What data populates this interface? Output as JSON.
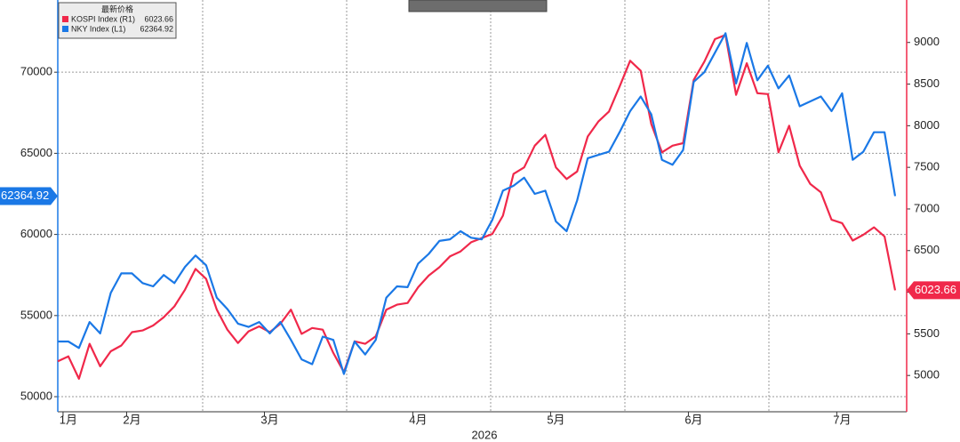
{
  "chart_data": {
    "type": "line",
    "xlabel": "2026",
    "legend_title": "最新价格",
    "categories": [
      null,
      "1月",
      null,
      null,
      null,
      null,
      null,
      "2月",
      null,
      null,
      null,
      null,
      null,
      null,
      null,
      null,
      null,
      null,
      null,
      null,
      "3月",
      null,
      null,
      null,
      null,
      null,
      null,
      null,
      null,
      null,
      null,
      null,
      null,
      null,
      "4月",
      null,
      null,
      null,
      null,
      null,
      null,
      null,
      null,
      null,
      null,
      null,
      null,
      "5月",
      null,
      null,
      null,
      null,
      null,
      null,
      null,
      null,
      null,
      null,
      null,
      null,
      "6月",
      null,
      null,
      null,
      null,
      null,
      null,
      null,
      null,
      null,
      null,
      null,
      null,
      null,
      "7月",
      null,
      null,
      null,
      null,
      null
    ],
    "series": [
      {
        "name": "KOSPI Index (R1)",
        "color": "#f0284a",
        "axis": "y2",
        "values": [
          5170,
          5230,
          4960,
          5380,
          5110,
          5290,
          5360,
          5520,
          5540,
          5600,
          5700,
          5830,
          6030,
          6280,
          6160,
          5790,
          5550,
          5390,
          5530,
          5590,
          5520,
          5620,
          5790,
          5500,
          5570,
          5550,
          5270,
          5040,
          5410,
          5380,
          5470,
          5790,
          5850,
          5870,
          6060,
          6200,
          6300,
          6430,
          6490,
          6600,
          6650,
          6700,
          6920,
          7420,
          7500,
          7760,
          7890,
          7500,
          7360,
          7450,
          7870,
          8050,
          8170,
          8470,
          8780,
          8660,
          8020,
          7680,
          7760,
          7790,
          8550,
          8770,
          9040,
          9090,
          8370,
          8750,
          8390,
          8380,
          7680,
          8000,
          7520,
          7300,
          7200,
          6870,
          6830,
          6620,
          6690,
          6780,
          6670,
          6023.66
        ]
      },
      {
        "name": "NKY Index (L1)",
        "color": "#1a78e6",
        "axis": "y",
        "values": [
          53400,
          53400,
          53000,
          54600,
          53900,
          56400,
          57600,
          57600,
          57000,
          56800,
          57500,
          57000,
          58000,
          58700,
          58100,
          56100,
          55400,
          54500,
          54300,
          54600,
          53900,
          54600,
          53500,
          52300,
          52000,
          53700,
          53500,
          51400,
          53400,
          52600,
          53500,
          56100,
          56800,
          56750,
          58200,
          58800,
          59600,
          59700,
          60200,
          59800,
          59700,
          60900,
          62700,
          63000,
          63500,
          62500,
          62700,
          60800,
          60200,
          62100,
          64700,
          64900,
          65100,
          66300,
          67600,
          68500,
          67400,
          64600,
          64300,
          65200,
          69400,
          70000,
          71200,
          72400,
          69300,
          71800,
          69500,
          70400,
          69000,
          69800,
          67900,
          68200,
          68500,
          67600,
          68700,
          64600,
          65100,
          66300,
          66300,
          62364.92
        ]
      }
    ],
    "ylim": [
      49070,
      74450
    ],
    "yticks": [
      50000,
      55000,
      60000,
      65000,
      70000
    ],
    "y2lim": [
      4564,
      9510
    ],
    "y2ticks": [
      5000,
      5500,
      6000,
      6500,
      7000,
      7500,
      8000,
      8500,
      9000
    ],
    "grid": true
  }
}
